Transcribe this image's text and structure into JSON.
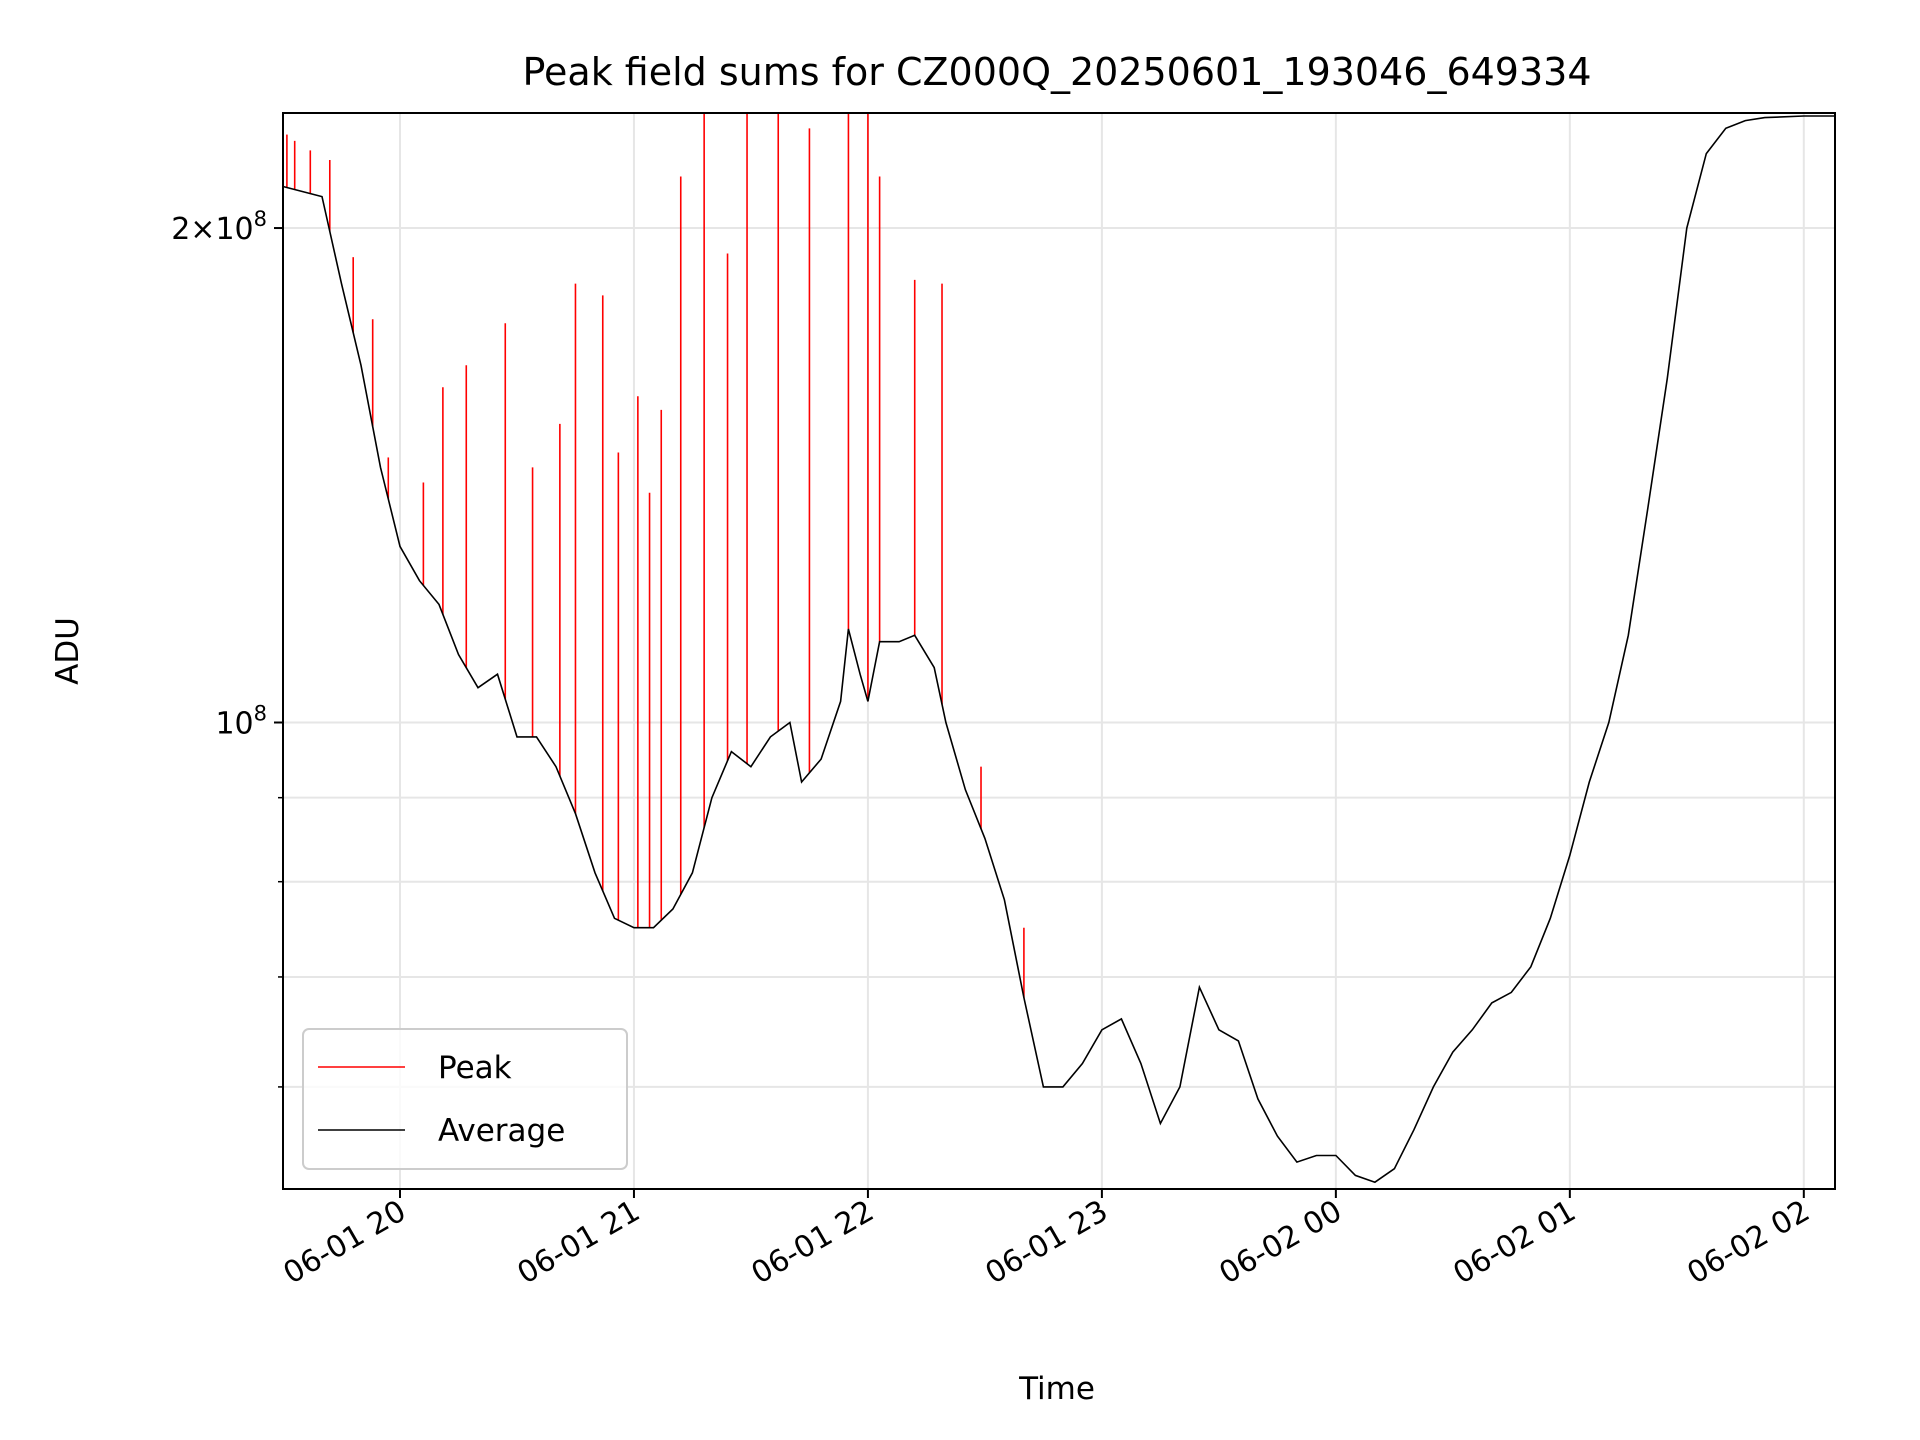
{
  "chart_data": {
    "type": "line",
    "title": "Peak field sums for CZ000Q_20250601_193046_649334",
    "xlabel": "Time",
    "ylabel": "ADU",
    "y_scale": "log",
    "ylim": [
      52000000,
      235000000
    ],
    "xlim": [
      "2025-06-01 19:30",
      "2025-06-02 02:08"
    ],
    "grid": true,
    "legend_position": "lower-left",
    "x_tick_labels": [
      "06-01 20",
      "06-01 21",
      "06-01 22",
      "06-01 23",
      "06-02 00",
      "06-02 01",
      "06-02 02"
    ],
    "x_ticks": [
      "2025-06-01 20:00",
      "2025-06-01 21:00",
      "2025-06-01 22:00",
      "2025-06-01 23:00",
      "2025-06-02 00:00",
      "2025-06-02 01:00",
      "2025-06-02 02:00"
    ],
    "y_major_ticks": [
      100000000,
      200000000
    ],
    "y_tick_labels": [
      {
        "value": 100000000,
        "base": "10",
        "exp": "8",
        "mult": ""
      },
      {
        "value": 200000000,
        "base": "10",
        "exp": "8",
        "mult": "2×"
      }
    ],
    "y_minor_ticks": [
      60000000,
      70000000,
      80000000,
      90000000
    ],
    "series": [
      {
        "name": "Average",
        "color": "#000000",
        "points": [
          [
            "2025-06-01 19:30",
            212000000
          ],
          [
            "2025-06-01 19:40",
            209000000
          ],
          [
            "2025-06-01 19:45",
            185000000
          ],
          [
            "2025-06-01 19:50",
            165000000
          ],
          [
            "2025-06-01 19:55",
            143000000
          ],
          [
            "2025-06-01 20:00",
            128000000
          ],
          [
            "2025-06-01 20:05",
            122000000
          ],
          [
            "2025-06-01 20:10",
            118000000
          ],
          [
            "2025-06-01 20:15",
            110000000
          ],
          [
            "2025-06-01 20:20",
            105000000
          ],
          [
            "2025-06-01 20:25",
            107000000
          ],
          [
            "2025-06-01 20:30",
            98000000
          ],
          [
            "2025-06-01 20:35",
            98000000
          ],
          [
            "2025-06-01 20:40",
            94000000
          ],
          [
            "2025-06-01 20:45",
            88000000
          ],
          [
            "2025-06-01 20:50",
            81000000
          ],
          [
            "2025-06-01 20:55",
            76000000
          ],
          [
            "2025-06-01 21:00",
            75000000
          ],
          [
            "2025-06-01 21:05",
            75000000
          ],
          [
            "2025-06-01 21:10",
            77000000
          ],
          [
            "2025-06-01 21:15",
            81000000
          ],
          [
            "2025-06-01 21:20",
            90000000
          ],
          [
            "2025-06-01 21:25",
            96000000
          ],
          [
            "2025-06-01 21:30",
            94000000
          ],
          [
            "2025-06-01 21:35",
            98000000
          ],
          [
            "2025-06-01 21:40",
            100000000
          ],
          [
            "2025-06-01 21:43",
            92000000
          ],
          [
            "2025-06-01 21:48",
            95000000
          ],
          [
            "2025-06-01 21:53",
            103000000
          ],
          [
            "2025-06-01 21:55",
            114000000
          ],
          [
            "2025-06-01 21:58",
            107000000
          ],
          [
            "2025-06-01 22:00",
            103000000
          ],
          [
            "2025-06-01 22:03",
            112000000
          ],
          [
            "2025-06-01 22:08",
            112000000
          ],
          [
            "2025-06-01 22:12",
            113000000
          ],
          [
            "2025-06-01 22:17",
            108000000
          ],
          [
            "2025-06-01 22:20",
            100000000
          ],
          [
            "2025-06-01 22:25",
            91000000
          ],
          [
            "2025-06-01 22:30",
            85000000
          ],
          [
            "2025-06-01 22:35",
            78000000
          ],
          [
            "2025-06-01 22:40",
            68000000
          ],
          [
            "2025-06-01 22:45",
            60000000
          ],
          [
            "2025-06-01 22:50",
            60000000
          ],
          [
            "2025-06-01 22:55",
            62000000
          ],
          [
            "2025-06-01 23:00",
            65000000
          ],
          [
            "2025-06-01 23:05",
            66000000
          ],
          [
            "2025-06-01 23:10",
            62000000
          ],
          [
            "2025-06-01 23:15",
            57000000
          ],
          [
            "2025-06-01 23:20",
            60000000
          ],
          [
            "2025-06-01 23:25",
            69000000
          ],
          [
            "2025-06-01 23:30",
            65000000
          ],
          [
            "2025-06-01 23:35",
            64000000
          ],
          [
            "2025-06-01 23:40",
            59000000
          ],
          [
            "2025-06-01 23:45",
            56000000
          ],
          [
            "2025-06-01 23:50",
            54000000
          ],
          [
            "2025-06-01 23:55",
            54500000
          ],
          [
            "2025-06-02 00:00",
            54500000
          ],
          [
            "2025-06-02 00:05",
            53000000
          ],
          [
            "2025-06-02 00:10",
            52500000
          ],
          [
            "2025-06-02 00:15",
            53500000
          ],
          [
            "2025-06-02 00:20",
            56500000
          ],
          [
            "2025-06-02 00:25",
            60000000
          ],
          [
            "2025-06-02 00:30",
            63000000
          ],
          [
            "2025-06-02 00:35",
            65000000
          ],
          [
            "2025-06-02 00:40",
            67500000
          ],
          [
            "2025-06-02 00:45",
            68500000
          ],
          [
            "2025-06-02 00:50",
            71000000
          ],
          [
            "2025-06-02 00:55",
            76000000
          ],
          [
            "2025-06-02 01:00",
            83000000
          ],
          [
            "2025-06-02 01:05",
            92000000
          ],
          [
            "2025-06-02 01:10",
            100000000
          ],
          [
            "2025-06-02 01:15",
            113000000
          ],
          [
            "2025-06-02 01:20",
            135000000
          ],
          [
            "2025-06-02 01:25",
            162000000
          ],
          [
            "2025-06-02 01:30",
            200000000
          ],
          [
            "2025-06-02 01:35",
            222000000
          ],
          [
            "2025-06-02 01:40",
            230000000
          ],
          [
            "2025-06-02 01:45",
            232500000
          ],
          [
            "2025-06-02 01:50",
            233500000
          ],
          [
            "2025-06-02 02:00",
            234000000
          ],
          [
            "2025-06-02 02:08",
            234000000
          ]
        ]
      },
      {
        "name": "Peak",
        "color": "#ff0000",
        "note_points": "spikes above the average",
        "points": [
          [
            "2025-06-01 19:31",
            228000000
          ],
          [
            "2025-06-01 19:33",
            226000000
          ],
          [
            "2025-06-01 19:37",
            223000000
          ],
          [
            "2025-06-01 19:42",
            220000000
          ],
          [
            "2025-06-01 19:48",
            192000000
          ],
          [
            "2025-06-01 19:53",
            176000000
          ],
          [
            "2025-06-01 19:57",
            145000000
          ],
          [
            "2025-06-01 20:06",
            140000000
          ],
          [
            "2025-06-01 20:11",
            160000000
          ],
          [
            "2025-06-01 20:17",
            165000000
          ],
          [
            "2025-06-01 20:27",
            175000000
          ],
          [
            "2025-06-01 20:34",
            143000000
          ],
          [
            "2025-06-01 20:41",
            152000000
          ],
          [
            "2025-06-01 20:45",
            185000000
          ],
          [
            "2025-06-01 20:52",
            182000000
          ],
          [
            "2025-06-01 20:56",
            146000000
          ],
          [
            "2025-06-01 21:01",
            158000000
          ],
          [
            "2025-06-01 21:04",
            138000000
          ],
          [
            "2025-06-01 21:07",
            155000000
          ],
          [
            "2025-06-01 21:12",
            215000000
          ],
          [
            "2025-06-01 21:18",
            235000000
          ],
          [
            "2025-06-01 21:24",
            193000000
          ],
          [
            "2025-06-01 21:29",
            235000000
          ],
          [
            "2025-06-01 21:37",
            235000000
          ],
          [
            "2025-06-01 21:45",
            230000000
          ],
          [
            "2025-06-01 21:55",
            235000000
          ],
          [
            "2025-06-01 22:00",
            235000000
          ],
          [
            "2025-06-01 22:03",
            215000000
          ],
          [
            "2025-06-01 22:12",
            186000000
          ],
          [
            "2025-06-01 22:19",
            185000000
          ],
          [
            "2025-06-01 22:29",
            94000000
          ],
          [
            "2025-06-01 22:40",
            75000000
          ]
        ]
      }
    ]
  }
}
